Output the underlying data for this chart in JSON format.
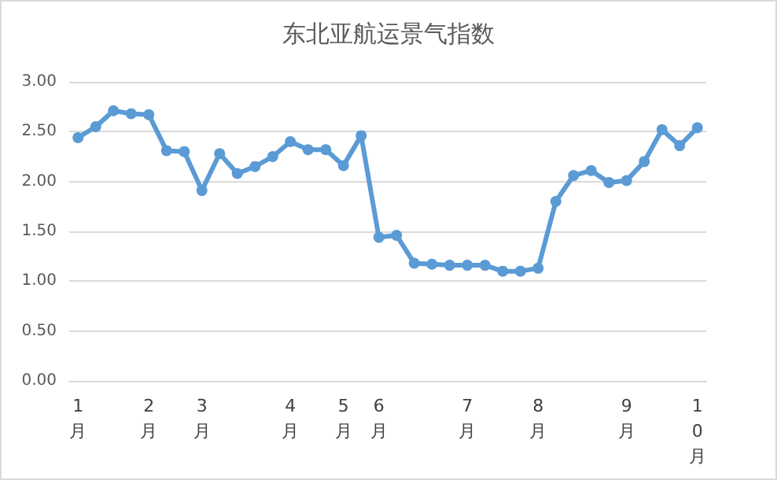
{
  "chart_data": {
    "type": "line",
    "title": "东北亚航运景气指数",
    "categories": [
      "1月",
      null,
      null,
      null,
      "2月",
      null,
      null,
      "3月",
      null,
      null,
      null,
      null,
      "4月",
      null,
      null,
      "5月",
      null,
      "6月",
      null,
      null,
      null,
      null,
      "7月",
      null,
      null,
      null,
      "8月",
      null,
      null,
      null,
      null,
      "9月",
      null,
      null,
      null,
      "10月"
    ],
    "series": [
      {
        "color": "#5b9bd5",
        "values": [
          2.44,
          2.55,
          2.71,
          2.68,
          2.67,
          2.31,
          2.3,
          1.91,
          2.28,
          2.08,
          2.15,
          2.25,
          2.4,
          2.32,
          2.32,
          2.16,
          2.46,
          1.44,
          1.46,
          1.18,
          1.17,
          1.16,
          1.16,
          1.16,
          1.1,
          1.1,
          1.13,
          1.8,
          2.06,
          2.11,
          1.99,
          2.01,
          2.2,
          2.52,
          2.36,
          2.54
        ]
      }
    ],
    "ylim": [
      0,
      3
    ],
    "yticks": [
      {
        "value": 0,
        "label": "0.00"
      },
      {
        "value": 0.5,
        "label": "0.50"
      },
      {
        "value": 1,
        "label": "1.00"
      },
      {
        "value": 1.5,
        "label": "1.50"
      },
      {
        "value": 2,
        "label": "2.00"
      },
      {
        "value": 2.5,
        "label": "2.50"
      },
      {
        "value": 3,
        "label": "3.00"
      }
    ],
    "grid": "y",
    "marker": "circle",
    "line_style": "solid"
  }
}
